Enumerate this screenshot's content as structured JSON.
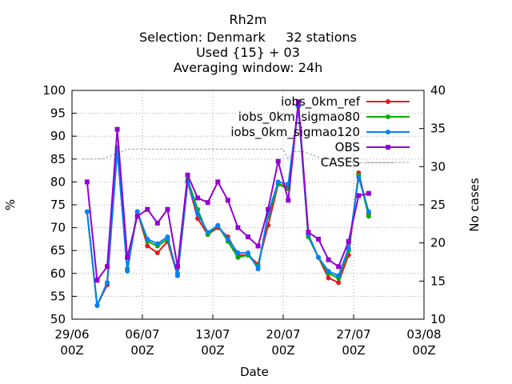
{
  "chart_data": {
    "type": "line",
    "title_lines": [
      "Rh2m",
      "Selection: Denmark     32 stations",
      "Used {15} + 03",
      "Averaging window: 24h"
    ],
    "xlabel": "Date",
    "ylabel": "%",
    "y2label": "No cases",
    "x_ticks": [
      {
        "date": "2012-06-29T00:00",
        "label_top": "29/06",
        "label_bottom": "00Z"
      },
      {
        "date": "2012-07-06T00:00",
        "label_top": "06/07",
        "label_bottom": "00Z"
      },
      {
        "date": "2012-07-13T00:00",
        "label_top": "13/07",
        "label_bottom": "00Z"
      },
      {
        "date": "2012-07-20T00:00",
        "label_top": "20/07",
        "label_bottom": "00Z"
      },
      {
        "date": "2012-07-27T00:00",
        "label_top": "27/07",
        "label_bottom": "00Z"
      },
      {
        "date": "2012-08-03T00:00",
        "label_top": "03/08",
        "label_bottom": "00Z"
      }
    ],
    "xlim": [
      "2012-06-29T00:00",
      "2012-08-03T00:00"
    ],
    "ylim": [
      50,
      100
    ],
    "y_ticks": [
      50,
      55,
      60,
      65,
      70,
      75,
      80,
      85,
      90,
      95,
      100
    ],
    "y2lim": [
      10,
      40
    ],
    "y2_ticks": [
      10,
      15,
      20,
      25,
      30,
      35,
      40
    ],
    "grid": true,
    "legend_position": "top-right",
    "series": [
      {
        "name": "iobs_0km_ref",
        "color": "#e41a1c",
        "marker": "circle",
        "points": [
          [
            "2012-06-30T12:00",
            73.5
          ],
          [
            "2012-07-01T12:00",
            53.0
          ],
          [
            "2012-07-02T12:00",
            57.5
          ],
          [
            "2012-07-03T12:00",
            87.5
          ],
          [
            "2012-07-04T12:00",
            61.0
          ],
          [
            "2012-07-05T12:00",
            73.5
          ],
          [
            "2012-07-06T12:00",
            66.0
          ],
          [
            "2012-07-07T12:00",
            64.5
          ],
          [
            "2012-07-08T12:00",
            67.0
          ],
          [
            "2012-07-09T12:00",
            59.5
          ],
          [
            "2012-07-10T12:00",
            80.0
          ],
          [
            "2012-07-11T12:00",
            72.0
          ],
          [
            "2012-07-12T12:00",
            68.5
          ],
          [
            "2012-07-13T12:00",
            70.0
          ],
          [
            "2012-07-14T12:00",
            68.0
          ],
          [
            "2012-07-15T12:00",
            64.0
          ],
          [
            "2012-07-16T12:00",
            64.0
          ],
          [
            "2012-07-17T12:00",
            62.0
          ],
          [
            "2012-07-18T12:00",
            70.5
          ],
          [
            "2012-07-19T12:00",
            79.5
          ],
          [
            "2012-07-20T12:00",
            79.0
          ],
          [
            "2012-07-21T12:00",
            96.5
          ],
          [
            "2012-07-22T12:00",
            68.0
          ],
          [
            "2012-07-23T12:00",
            63.5
          ],
          [
            "2012-07-24T12:00",
            59.0
          ],
          [
            "2012-07-25T12:00",
            58.0
          ],
          [
            "2012-07-26T12:00",
            64.0
          ],
          [
            "2012-07-27T12:00",
            82.0
          ],
          [
            "2012-07-28T12:00",
            73.0
          ]
        ]
      },
      {
        "name": "iobs_0km_sigmao80",
        "color": "#00b000",
        "marker": "circle",
        "points": [
          [
            "2012-06-30T12:00",
            73.5
          ],
          [
            "2012-07-01T12:00",
            53.0
          ],
          [
            "2012-07-02T12:00",
            58.0
          ],
          [
            "2012-07-03T12:00",
            87.5
          ],
          [
            "2012-07-04T12:00",
            61.0
          ],
          [
            "2012-07-05T12:00",
            73.5
          ],
          [
            "2012-07-06T12:00",
            67.0
          ],
          [
            "2012-07-07T12:00",
            66.0
          ],
          [
            "2012-07-08T12:00",
            67.5
          ],
          [
            "2012-07-09T12:00",
            60.0
          ],
          [
            "2012-07-10T12:00",
            80.5
          ],
          [
            "2012-07-11T12:00",
            74.0
          ],
          [
            "2012-07-12T12:00",
            68.5
          ],
          [
            "2012-07-13T12:00",
            70.5
          ],
          [
            "2012-07-14T12:00",
            67.0
          ],
          [
            "2012-07-15T12:00",
            63.5
          ],
          [
            "2012-07-16T12:00",
            64.0
          ],
          [
            "2012-07-17T12:00",
            61.5
          ],
          [
            "2012-07-18T12:00",
            72.5
          ],
          [
            "2012-07-19T12:00",
            79.5
          ],
          [
            "2012-07-20T12:00",
            78.5
          ],
          [
            "2012-07-21T12:00",
            96.5
          ],
          [
            "2012-07-22T12:00",
            68.0
          ],
          [
            "2012-07-23T12:00",
            63.5
          ],
          [
            "2012-07-24T12:00",
            60.0
          ],
          [
            "2012-07-25T12:00",
            59.0
          ],
          [
            "2012-07-26T12:00",
            65.0
          ],
          [
            "2012-07-27T12:00",
            81.5
          ],
          [
            "2012-07-28T12:00",
            72.5
          ]
        ]
      },
      {
        "name": "iobs_0km_sigmao120",
        "color": "#0080ff",
        "marker": "circle",
        "points": [
          [
            "2012-06-30T12:00",
            73.5
          ],
          [
            "2012-07-01T12:00",
            53.0
          ],
          [
            "2012-07-02T12:00",
            58.0
          ],
          [
            "2012-07-03T12:00",
            87.0
          ],
          [
            "2012-07-04T12:00",
            60.5
          ],
          [
            "2012-07-05T12:00",
            73.5
          ],
          [
            "2012-07-06T12:00",
            67.5
          ],
          [
            "2012-07-07T12:00",
            66.5
          ],
          [
            "2012-07-08T12:00",
            68.0
          ],
          [
            "2012-07-09T12:00",
            59.5
          ],
          [
            "2012-07-10T12:00",
            80.0
          ],
          [
            "2012-07-11T12:00",
            73.0
          ],
          [
            "2012-07-12T12:00",
            69.0
          ],
          [
            "2012-07-13T12:00",
            70.5
          ],
          [
            "2012-07-14T12:00",
            67.5
          ],
          [
            "2012-07-15T12:00",
            64.5
          ],
          [
            "2012-07-16T12:00",
            64.5
          ],
          [
            "2012-07-17T12:00",
            61.0
          ],
          [
            "2012-07-18T12:00",
            73.0
          ],
          [
            "2012-07-19T12:00",
            80.0
          ],
          [
            "2012-07-20T12:00",
            79.5
          ],
          [
            "2012-07-21T12:00",
            96.5
          ],
          [
            "2012-07-22T12:00",
            68.5
          ],
          [
            "2012-07-23T12:00",
            63.5
          ],
          [
            "2012-07-24T12:00",
            60.5
          ],
          [
            "2012-07-25T12:00",
            59.5
          ],
          [
            "2012-07-26T12:00",
            65.5
          ],
          [
            "2012-07-27T12:00",
            81.0
          ],
          [
            "2012-07-28T12:00",
            73.5
          ]
        ]
      },
      {
        "name": "OBS",
        "color": "#9400d3",
        "marker": "square",
        "points": [
          [
            "2012-06-30T12:00",
            80.0
          ],
          [
            "2012-07-01T12:00",
            58.5
          ],
          [
            "2012-07-02T12:00",
            61.5
          ],
          [
            "2012-07-03T12:00",
            91.5
          ],
          [
            "2012-07-04T12:00",
            63.5
          ],
          [
            "2012-07-05T12:00",
            72.5
          ],
          [
            "2012-07-06T12:00",
            74.0
          ],
          [
            "2012-07-07T12:00",
            71.0
          ],
          [
            "2012-07-08T12:00",
            74.0
          ],
          [
            "2012-07-09T12:00",
            61.5
          ],
          [
            "2012-07-10T12:00",
            81.5
          ],
          [
            "2012-07-11T12:00",
            76.5
          ],
          [
            "2012-07-12T12:00",
            75.5
          ],
          [
            "2012-07-13T12:00",
            80.0
          ],
          [
            "2012-07-14T12:00",
            76.0
          ],
          [
            "2012-07-15T12:00",
            70.0
          ],
          [
            "2012-07-16T12:00",
            68.0
          ],
          [
            "2012-07-17T12:00",
            66.0
          ],
          [
            "2012-07-18T12:00",
            74.0
          ],
          [
            "2012-07-19T12:00",
            84.5
          ],
          [
            "2012-07-20T12:00",
            76.0
          ],
          [
            "2012-07-21T12:00",
            97.5
          ],
          [
            "2012-07-22T12:00",
            69.0
          ],
          [
            "2012-07-23T12:00",
            67.5
          ],
          [
            "2012-07-24T12:00",
            63.0
          ],
          [
            "2012-07-25T12:00",
            61.5
          ],
          [
            "2012-07-26T12:00",
            67.0
          ],
          [
            "2012-07-27T12:00",
            77.0
          ],
          [
            "2012-07-28T12:00",
            77.5
          ]
        ]
      },
      {
        "name": "CASES",
        "color": "#a0a0a0",
        "axis": "right",
        "style": "step",
        "points": [
          [
            "2012-06-30T00:00",
            31.0
          ],
          [
            "2012-07-02T00:00",
            31.0
          ],
          [
            "2012-07-03T00:00",
            31.5
          ],
          [
            "2012-07-04T00:00",
            32.0
          ],
          [
            "2012-07-04T12:00",
            32.3
          ],
          [
            "2012-07-07T00:00",
            32.3
          ],
          [
            "2012-07-10T00:00",
            32.3
          ],
          [
            "2012-07-13T00:00",
            32.3
          ],
          [
            "2012-07-16T00:00",
            32.3
          ],
          [
            "2012-07-19T00:00",
            32.3
          ],
          [
            "2012-07-20T00:00",
            32.3
          ],
          [
            "2012-07-20T12:00",
            31.0
          ],
          [
            "2012-07-21T00:00",
            32.0
          ],
          [
            "2012-07-22T00:00",
            32.0
          ],
          [
            "2012-07-23T00:00",
            31.5
          ],
          [
            "2012-07-24T00:00",
            31.0
          ],
          [
            "2012-07-25T00:00",
            31.0
          ],
          [
            "2012-07-26T00:00",
            31.0
          ],
          [
            "2012-07-27T00:00",
            30.5
          ],
          [
            "2012-07-29T00:00",
            30.5
          ],
          [
            "2012-07-31T00:00",
            30.5
          ]
        ]
      }
    ]
  }
}
